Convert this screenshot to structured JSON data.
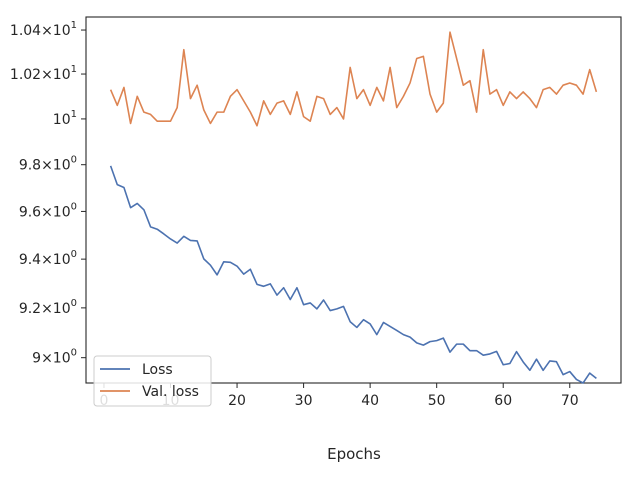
{
  "chart_data": {
    "type": "line",
    "title": "",
    "xlabel": "Epochs",
    "ylabel": "",
    "yscale": "log",
    "xlim": [
      -2.7,
      77.7
    ],
    "ylim": [
      8.9,
      10.46
    ],
    "grid": false,
    "legend_position": "lower-left",
    "x_ticks": [
      {
        "value": 0,
        "label": "0"
      },
      {
        "value": 10,
        "label": "10"
      },
      {
        "value": 20,
        "label": "20"
      },
      {
        "value": 30,
        "label": "30"
      },
      {
        "value": 40,
        "label": "40"
      },
      {
        "value": 50,
        "label": "50"
      },
      {
        "value": 60,
        "label": "60"
      },
      {
        "value": 70,
        "label": "70"
      }
    ],
    "y_ticks": [
      {
        "value": 9.0,
        "base": "9",
        "sup": "0"
      },
      {
        "value": 9.2,
        "base": "9.2",
        "sup": "0"
      },
      {
        "value": 9.4,
        "base": "9.4",
        "sup": "0"
      },
      {
        "value": 9.6,
        "base": "9.6",
        "sup": "0"
      },
      {
        "value": 9.8,
        "base": "9.8",
        "sup": "0"
      },
      {
        "value": 10.0,
        "base": "10",
        "sup": "1"
      },
      {
        "value": 10.2,
        "base": "1.02",
        "sup": "1"
      },
      {
        "value": 10.4,
        "base": "1.04",
        "sup": "1"
      }
    ],
    "x": [
      1,
      2,
      3,
      4,
      5,
      6,
      7,
      8,
      9,
      10,
      11,
      12,
      13,
      14,
      15,
      16,
      17,
      18,
      19,
      20,
      21,
      22,
      23,
      24,
      25,
      26,
      27,
      28,
      29,
      30,
      31,
      32,
      33,
      34,
      35,
      36,
      37,
      38,
      39,
      40,
      41,
      42,
      43,
      44,
      45,
      46,
      47,
      48,
      49,
      50,
      51,
      52,
      53,
      54,
      55,
      56,
      57,
      58,
      59,
      60,
      61,
      62,
      63,
      64,
      65,
      66,
      67,
      68,
      69,
      70,
      71,
      72,
      73,
      74
    ],
    "series": [
      {
        "name": "Loss",
        "color": "#4c72b0",
        "values": [
          9.795,
          9.714,
          9.702,
          9.616,
          9.634,
          9.607,
          9.535,
          9.525,
          9.505,
          9.484,
          9.467,
          9.495,
          9.478,
          9.476,
          9.401,
          9.375,
          9.335,
          9.389,
          9.387,
          9.371,
          9.338,
          9.358,
          9.296,
          9.288,
          9.298,
          9.252,
          9.282,
          9.234,
          9.282,
          9.213,
          9.22,
          9.196,
          9.232,
          9.189,
          9.196,
          9.206,
          9.144,
          9.121,
          9.152,
          9.135,
          9.092,
          9.141,
          9.125,
          9.109,
          9.092,
          9.082,
          9.059,
          9.05,
          9.064,
          9.068,
          9.078,
          9.022,
          9.054,
          9.054,
          9.028,
          9.028,
          9.01,
          9.015,
          9.025,
          8.972,
          8.977,
          9.024,
          8.983,
          8.95,
          8.994,
          8.95,
          8.987,
          8.984,
          8.933,
          8.945,
          8.914,
          8.9,
          8.939,
          8.918
        ]
      },
      {
        "name": "Val. loss",
        "color": "#dd8452",
        "values": [
          10.13,
          10.06,
          10.14,
          9.98,
          10.1,
          10.03,
          10.02,
          9.99,
          9.99,
          9.99,
          10.05,
          10.31,
          10.09,
          10.15,
          10.04,
          9.98,
          10.03,
          10.03,
          10.1,
          10.13,
          10.08,
          10.03,
          9.97,
          10.08,
          10.02,
          10.07,
          10.08,
          10.02,
          10.12,
          10.01,
          9.99,
          10.1,
          10.09,
          10.02,
          10.05,
          10.0,
          10.23,
          10.09,
          10.13,
          10.06,
          10.14,
          10.08,
          10.23,
          10.05,
          10.1,
          10.16,
          10.27,
          10.28,
          10.11,
          10.03,
          10.07,
          10.39,
          10.27,
          10.15,
          10.17,
          10.03,
          10.31,
          10.11,
          10.13,
          10.06,
          10.12,
          10.09,
          10.12,
          10.09,
          10.05,
          10.13,
          10.14,
          10.11,
          10.15,
          10.16,
          10.15,
          10.11,
          10.22,
          10.12
        ]
      }
    ]
  }
}
